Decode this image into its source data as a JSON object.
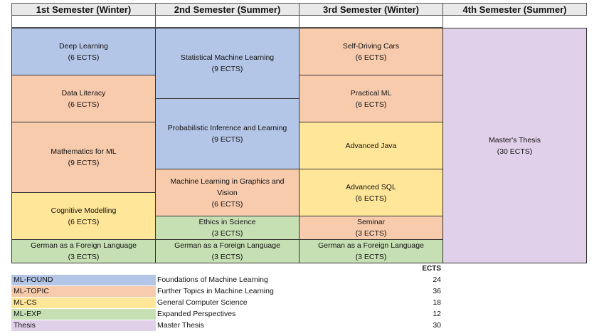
{
  "headers": [
    "1st Semester (Winter)",
    "2nd Semester (Summer)",
    "3rd Semester (Winter)",
    "4th Semester (Summer)"
  ],
  "semester1": [
    {
      "name": "Deep Learning",
      "ects": "(6 ECTS)"
    },
    {
      "name": "Data Literacy",
      "ects": "(6 ECTS)"
    },
    {
      "name": "Mathematics for ML",
      "ects": "(9 ECTS)"
    },
    {
      "name": "Cognitive Modelling",
      "ects": "(6 ECTS)"
    },
    {
      "name": "German as a Foreign Language",
      "ects": "(3 ECTS)"
    }
  ],
  "semester2": [
    {
      "name": "Statistical Machine Learning",
      "ects": "(9 ECTS)"
    },
    {
      "name": "Probabilistic Inference and Learning",
      "ects": "(9 ECTS)"
    },
    {
      "name": "Machine Learning in Graphics and Vision",
      "ects": "(6 ECTS)"
    },
    {
      "name": "Ethics in Science",
      "ects": "(3 ECTS)"
    },
    {
      "name": "German as a Foreign Language",
      "ects": "(3 ECTS)"
    }
  ],
  "semester3": [
    {
      "name": "Self-Driving Cars",
      "ects": "(6 ECTS)"
    },
    {
      "name": "Practical ML",
      "ects": "(6 ECTS)"
    },
    {
      "name": "Advanced Java",
      "ects": ""
    },
    {
      "name": "Advanced SQL",
      "ects": "(6 ECTS)"
    },
    {
      "name": "Seminar",
      "ects": "(3 ECTS)"
    },
    {
      "name": "German as a Foreign Language",
      "ects": "(3 ECTS)"
    }
  ],
  "semester4": [
    {
      "name": "Master's Thesis",
      "ects": "(30 ECTS)"
    }
  ],
  "legend": {
    "ects_header": "ECTS",
    "rows": [
      {
        "code": "ML-FOUND",
        "desc": "Foundations of Machine Learning",
        "ects": "24",
        "color": "#b4c6e7"
      },
      {
        "code": "ML-TOPIC",
        "desc": "Further Topics in Machine Learning",
        "ects": "36",
        "color": "#f8cbad"
      },
      {
        "code": "ML-CS",
        "desc": "General Computer Science",
        "ects": "18",
        "color": "#ffe699"
      },
      {
        "code": "ML-EXP",
        "desc": "Expanded Perspectives",
        "ects": "12",
        "color": "#c6e0b4"
      },
      {
        "code": "Thesis",
        "desc": "Master Thesis",
        "ects": "30",
        "color": "#e1d0e9"
      }
    ]
  }
}
